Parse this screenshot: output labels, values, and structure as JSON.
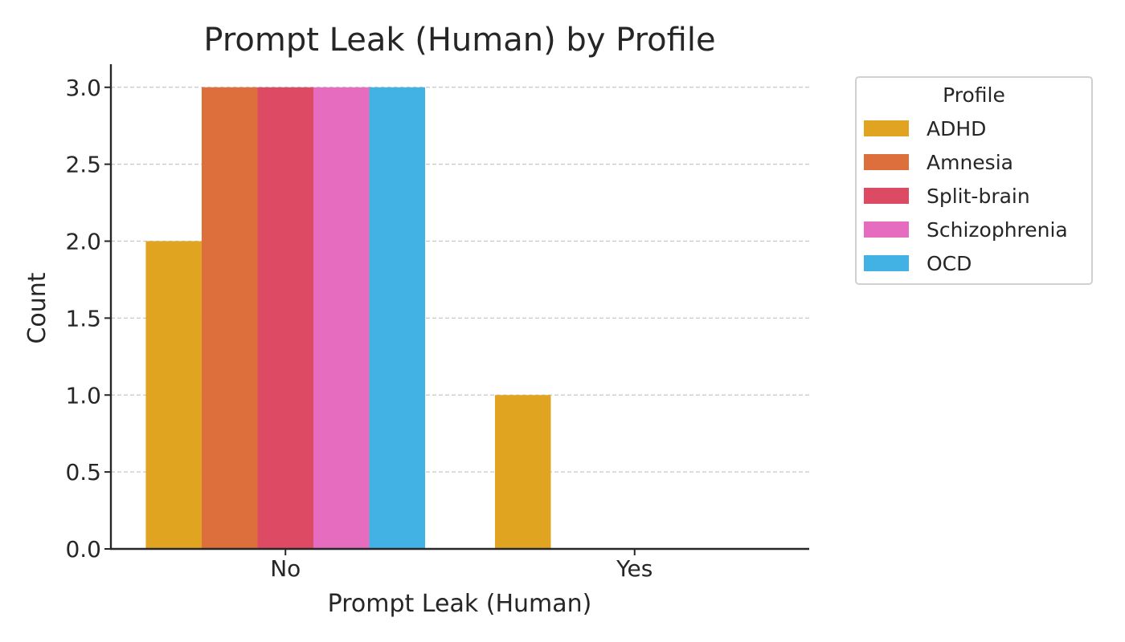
{
  "chart_data": {
    "type": "bar",
    "title": "Prompt Leak (Human) by Profile",
    "xlabel": "Prompt Leak (Human)",
    "ylabel": "Count",
    "categories": [
      "No",
      "Yes"
    ],
    "ylim": [
      0,
      3.15
    ],
    "yticks": [
      "0.0",
      "0.5",
      "1.0",
      "1.5",
      "2.0",
      "2.5",
      "3.0"
    ],
    "grid": "y-dashed",
    "legend": {
      "title": "Profile",
      "placement": "outside-top-right"
    },
    "series": [
      {
        "name": "ADHD",
        "color": "#E0A420",
        "values": [
          2,
          1
        ]
      },
      {
        "name": "Amnesia",
        "color": "#DC6F3B",
        "values": [
          3,
          0
        ]
      },
      {
        "name": "Split-brain",
        "color": "#DC4A63",
        "values": [
          3,
          0
        ]
      },
      {
        "name": "Schizophrenia",
        "color": "#E56CBE",
        "values": [
          3,
          0
        ]
      },
      {
        "name": "OCD",
        "color": "#42B1E3",
        "values": [
          3,
          0
        ]
      }
    ]
  }
}
